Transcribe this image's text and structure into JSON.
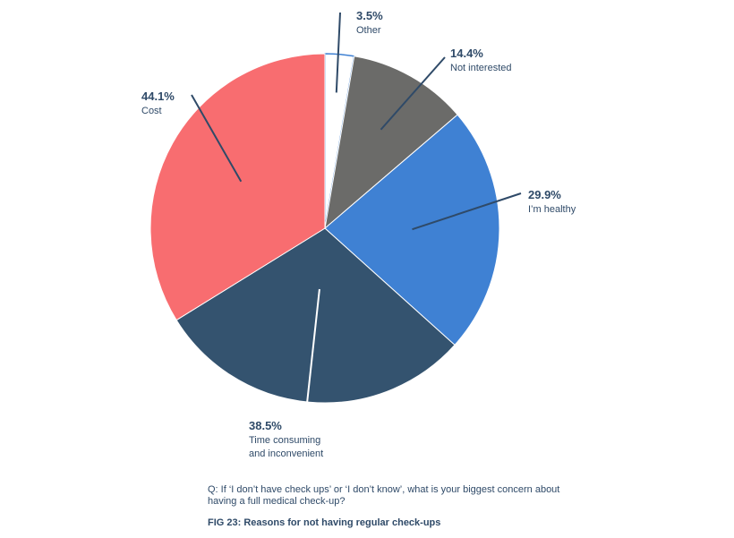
{
  "chart_data": {
    "type": "pie",
    "slices": [
      {
        "label": "Other",
        "value": 3.5,
        "value_text": "3.5%",
        "color": "#ffffff"
      },
      {
        "label": "Not interested",
        "value": 14.4,
        "value_text": "14.4%",
        "color": "#6b6b69"
      },
      {
        "label": "I’m healthy",
        "value": 29.9,
        "value_text": "29.9%",
        "color": "#3f81d3"
      },
      {
        "label": "Time consuming and inconvenient",
        "value": 38.5,
        "value_text": "38.5%",
        "color": "#34536f"
      },
      {
        "label": "Cost",
        "value": 44.1,
        "value_text": "44.1%",
        "color": "#f86d70"
      }
    ],
    "edge_color": "#3f81d3",
    "leader_color": "#2f4a68"
  },
  "question": "Q: If ‘I don’t have check ups’ or ‘I don’t know’, what is your biggest concern about having a full medical check-up?",
  "figure_caption": "FIG 23: Reasons for not having regular check-ups"
}
